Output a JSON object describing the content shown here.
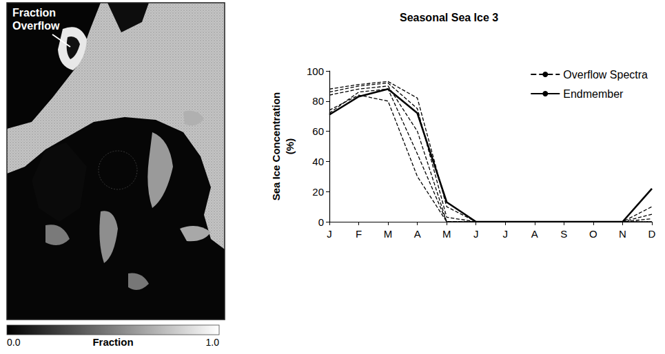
{
  "map": {
    "annotation": "Fraction Overflow",
    "colorbar": {
      "label": "Fraction",
      "range": [
        0,
        1
      ],
      "ticks": [
        {
          "value": 0,
          "label": "0.0"
        },
        {
          "value": 1,
          "label": "1.0"
        }
      ]
    }
  },
  "chart_data": {
    "type": "line",
    "title": "Seasonal Sea Ice 3",
    "y_label": "Sea Ice Concentration (%)",
    "categories": [
      "J",
      "F",
      "M",
      "A",
      "M",
      "J",
      "J",
      "A",
      "S",
      "O",
      "N",
      "D"
    ],
    "series": [
      {
        "name": "Overflow Spectra",
        "color": "#000000",
        "line_style": "dashed",
        "values": [
          88,
          91,
          93,
          82,
          10,
          0,
          0,
          0,
          0,
          0,
          0,
          10
        ]
      },
      {
        "name": "Overflow Spectra",
        "color": "#000000",
        "line_style": "dashed",
        "values": [
          86,
          90,
          92,
          75,
          3,
          0,
          0,
          0,
          0,
          0,
          0,
          5
        ]
      },
      {
        "name": "Overflow Spectra",
        "color": "#000000",
        "line_style": "dashed",
        "values": [
          84,
          88,
          90,
          60,
          0,
          0,
          0,
          0,
          0,
          0,
          0,
          2
        ]
      },
      {
        "name": "Overflow Spectra",
        "color": "#000000",
        "line_style": "dashed",
        "values": [
          72,
          86,
          88,
          45,
          0,
          0,
          0,
          0,
          0,
          0,
          0,
          0
        ]
      },
      {
        "name": "Overflow Spectra",
        "color": "#000000",
        "line_style": "dashed",
        "values": [
          74,
          84,
          80,
          30,
          0,
          0,
          0,
          0,
          0,
          0,
          0,
          0
        ]
      },
      {
        "name": "Endmember",
        "color": "#000000",
        "line_style": "solid",
        "values": [
          71,
          83,
          88,
          72,
          13,
          0,
          0,
          0,
          0,
          0,
          0,
          22
        ]
      }
    ],
    "ylim": [
      0,
      100
    ],
    "yticks": [
      0,
      20,
      40,
      60,
      80,
      100
    ],
    "grid": false,
    "legend": "top-right"
  }
}
